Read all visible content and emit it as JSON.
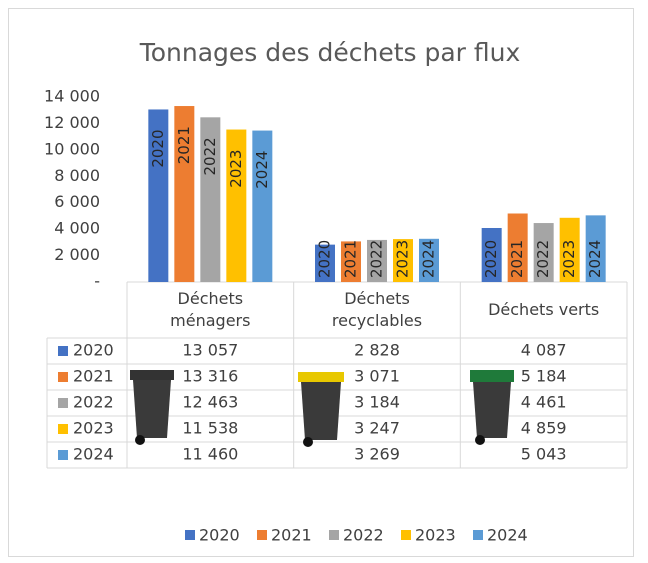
{
  "chart_data": {
    "type": "bar",
    "title": "Tonnages des déchets par flux",
    "categories": [
      "Déchets\nménagers",
      "Déchets\nrecyclables",
      "Déchets verts"
    ],
    "series": [
      {
        "name": "2020",
        "color": "#4472c4",
        "values": [
          13057,
          2828,
          4087
        ],
        "value_labels": [
          "13 057",
          "2 828",
          "4 087"
        ]
      },
      {
        "name": "2021",
        "color": "#ed7d31",
        "values": [
          13316,
          3071,
          5184
        ],
        "value_labels": [
          "13 316",
          "3 071",
          "5 184"
        ]
      },
      {
        "name": "2022",
        "color": "#a5a5a5",
        "values": [
          12463,
          3184,
          4461
        ],
        "value_labels": [
          "12 463",
          "3 184",
          "4 461"
        ]
      },
      {
        "name": "2023",
        "color": "#ffc000",
        "values": [
          11538,
          3247,
          4859
        ],
        "value_labels": [
          "11 538",
          "3 247",
          "4 859"
        ]
      },
      {
        "name": "2024",
        "color": "#5b9bd5",
        "values": [
          11460,
          3269,
          5043
        ],
        "value_labels": [
          "11 460",
          "3 269",
          "5 043"
        ]
      }
    ],
    "ylim": [
      0,
      14000
    ],
    "yticks": [
      {
        "value": 0,
        "label": "-"
      },
      {
        "value": 2000,
        "label": "2 000"
      },
      {
        "value": 4000,
        "label": "4 000"
      },
      {
        "value": 6000,
        "label": "6 000"
      },
      {
        "value": 8000,
        "label": "8 000"
      },
      {
        "value": 10000,
        "label": "10 000"
      },
      {
        "value": 12000,
        "label": "12 000"
      },
      {
        "value": 14000,
        "label": "14 000"
      }
    ],
    "legend": "bottom"
  }
}
